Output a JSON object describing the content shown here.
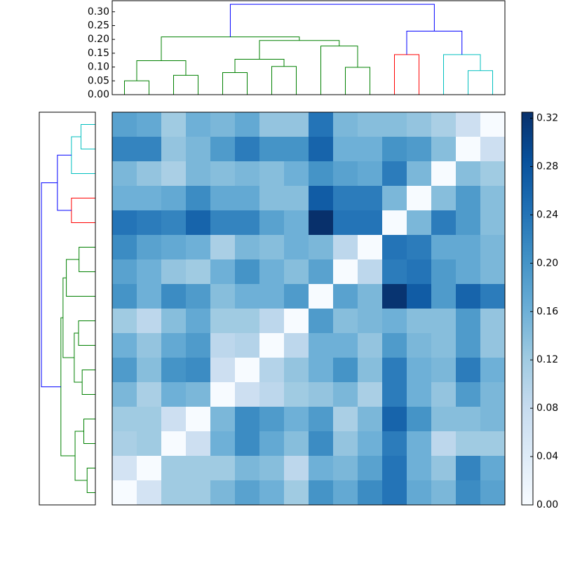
{
  "chart_data": {
    "type": "heatmap",
    "cmap": "Blues",
    "values": [
      [
        0.18,
        0.17,
        0.12,
        0.16,
        0.15,
        0.17,
        0.13,
        0.13,
        0.24,
        0.15,
        0.14,
        0.14,
        0.13,
        0.11,
        0.07,
        0.0
      ],
      [
        0.22,
        0.22,
        0.13,
        0.15,
        0.19,
        0.23,
        0.2,
        0.2,
        0.26,
        0.16,
        0.16,
        0.2,
        0.19,
        0.14,
        0.0,
        0.07
      ],
      [
        0.15,
        0.13,
        0.11,
        0.15,
        0.14,
        0.15,
        0.14,
        0.16,
        0.2,
        0.18,
        0.17,
        0.23,
        0.15,
        0.0,
        0.14,
        0.12
      ],
      [
        0.16,
        0.16,
        0.17,
        0.21,
        0.17,
        0.17,
        0.14,
        0.14,
        0.27,
        0.23,
        0.23,
        0.15,
        0.0,
        0.14,
        0.19,
        0.14
      ],
      [
        0.24,
        0.23,
        0.22,
        0.26,
        0.22,
        0.22,
        0.18,
        0.16,
        0.325,
        0.24,
        0.24,
        0.0,
        0.15,
        0.23,
        0.19,
        0.14
      ],
      [
        0.21,
        0.18,
        0.17,
        0.16,
        0.11,
        0.15,
        0.14,
        0.16,
        0.15,
        0.09,
        0.0,
        0.24,
        0.23,
        0.17,
        0.17,
        0.15
      ],
      [
        0.18,
        0.16,
        0.13,
        0.12,
        0.16,
        0.2,
        0.16,
        0.14,
        0.18,
        0.0,
        0.09,
        0.23,
        0.24,
        0.19,
        0.17,
        0.15
      ],
      [
        0.2,
        0.16,
        0.21,
        0.19,
        0.14,
        0.16,
        0.16,
        0.19,
        0.0,
        0.18,
        0.15,
        0.32,
        0.27,
        0.19,
        0.26,
        0.23
      ],
      [
        0.12,
        0.09,
        0.14,
        0.17,
        0.12,
        0.12,
        0.09,
        0.0,
        0.19,
        0.14,
        0.15,
        0.16,
        0.14,
        0.14,
        0.19,
        0.13
      ],
      [
        0.16,
        0.13,
        0.17,
        0.19,
        0.09,
        0.1,
        0.0,
        0.09,
        0.16,
        0.16,
        0.13,
        0.19,
        0.15,
        0.14,
        0.19,
        0.13
      ],
      [
        0.19,
        0.14,
        0.2,
        0.21,
        0.07,
        0.0,
        0.1,
        0.13,
        0.16,
        0.2,
        0.14,
        0.23,
        0.16,
        0.15,
        0.23,
        0.16
      ],
      [
        0.15,
        0.11,
        0.16,
        0.15,
        0.0,
        0.07,
        0.09,
        0.12,
        0.13,
        0.15,
        0.11,
        0.23,
        0.16,
        0.13,
        0.19,
        0.15
      ],
      [
        0.12,
        0.12,
        0.07,
        0.0,
        0.15,
        0.21,
        0.19,
        0.16,
        0.19,
        0.11,
        0.15,
        0.26,
        0.2,
        0.14,
        0.14,
        0.15
      ],
      [
        0.11,
        0.12,
        0.0,
        0.07,
        0.16,
        0.21,
        0.17,
        0.14,
        0.21,
        0.13,
        0.16,
        0.23,
        0.16,
        0.09,
        0.12,
        0.12
      ],
      [
        0.06,
        0.0,
        0.12,
        0.12,
        0.12,
        0.15,
        0.14,
        0.09,
        0.16,
        0.15,
        0.18,
        0.24,
        0.16,
        0.13,
        0.22,
        0.17
      ],
      [
        0.0,
        0.06,
        0.12,
        0.12,
        0.15,
        0.18,
        0.16,
        0.12,
        0.2,
        0.17,
        0.21,
        0.24,
        0.17,
        0.15,
        0.21,
        0.18
      ]
    ],
    "vlim": [
      0,
      0.325
    ],
    "colorbar_ticks": [
      {
        "value": 0,
        "label": "0.00"
      },
      {
        "value": 0.04,
        "label": "0.04"
      },
      {
        "value": 0.08,
        "label": "0.08"
      },
      {
        "value": 0.12,
        "label": "0.12"
      },
      {
        "value": 0.16,
        "label": "0.16"
      },
      {
        "value": 0.2,
        "label": "0.20"
      },
      {
        "value": 0.24,
        "label": "0.24"
      },
      {
        "value": 0.28,
        "label": "0.28"
      },
      {
        "value": 0.32,
        "label": "0.32"
      }
    ],
    "dendrogram": {
      "xlim": [
        0,
        160
      ],
      "ylim": [
        0,
        0.34
      ],
      "yticks": [
        {
          "value": 0,
          "label": "0.00"
        },
        {
          "value": 0.05,
          "label": "0.05"
        },
        {
          "value": 0.1,
          "label": "0.10"
        },
        {
          "value": 0.15,
          "label": "0.15"
        },
        {
          "value": 0.2,
          "label": "0.20"
        },
        {
          "value": 0.25,
          "label": "0.25"
        },
        {
          "value": 0.3,
          "label": "0.30"
        }
      ],
      "links": [
        {
          "x": [
            5,
            5,
            15,
            15
          ],
          "y": [
            0,
            0.05,
            0.05,
            0
          ],
          "color": "#008000"
        },
        {
          "x": [
            25,
            25,
            35,
            35
          ],
          "y": [
            0,
            0.07,
            0.07,
            0
          ],
          "color": "#008000"
        },
        {
          "x": [
            10,
            10,
            30,
            30
          ],
          "y": [
            0.05,
            0.123,
            0.123,
            0.07
          ],
          "color": "#008000"
        },
        {
          "x": [
            45,
            45,
            55,
            55
          ],
          "y": [
            0,
            0.08,
            0.08,
            0
          ],
          "color": "#008000"
        },
        {
          "x": [
            65,
            65,
            75,
            75
          ],
          "y": [
            0,
            0.102,
            0.102,
            0
          ],
          "color": "#008000"
        },
        {
          "x": [
            50,
            50,
            70,
            70
          ],
          "y": [
            0.08,
            0.128,
            0.128,
            0.102
          ],
          "color": "#008000"
        },
        {
          "x": [
            95,
            95,
            105,
            105
          ],
          "y": [
            0,
            0.099,
            0.099,
            0
          ],
          "color": "#008000"
        },
        {
          "x": [
            85,
            85,
            100,
            100
          ],
          "y": [
            0,
            0.176,
            0.176,
            0.099
          ],
          "color": "#008000"
        },
        {
          "x": [
            60,
            60,
            92.5,
            92.5
          ],
          "y": [
            0.128,
            0.196,
            0.196,
            0.176
          ],
          "color": "#008000"
        },
        {
          "x": [
            20,
            20,
            76.25,
            76.25
          ],
          "y": [
            0.123,
            0.209,
            0.209,
            0.196
          ],
          "color": "#008000"
        },
        {
          "x": [
            115,
            115,
            125,
            125
          ],
          "y": [
            0,
            0.145,
            0.145,
            0
          ],
          "color": "#ff0000"
        },
        {
          "x": [
            145,
            145,
            155,
            155
          ],
          "y": [
            0,
            0.087,
            0.087,
            0
          ],
          "color": "#00bfbf"
        },
        {
          "x": [
            135,
            135,
            150,
            150
          ],
          "y": [
            0,
            0.145,
            0.145,
            0.087
          ],
          "color": "#00bfbf"
        },
        {
          "x": [
            120,
            120,
            142.5,
            142.5
          ],
          "y": [
            0.145,
            0.23,
            0.23,
            0.145
          ],
          "color": "#0000ff"
        },
        {
          "x": [
            48.125,
            48.125,
            131.25,
            131.25
          ],
          "y": [
            0.209,
            0.327,
            0.327,
            0.23
          ],
          "color": "#0000ff"
        }
      ]
    }
  }
}
